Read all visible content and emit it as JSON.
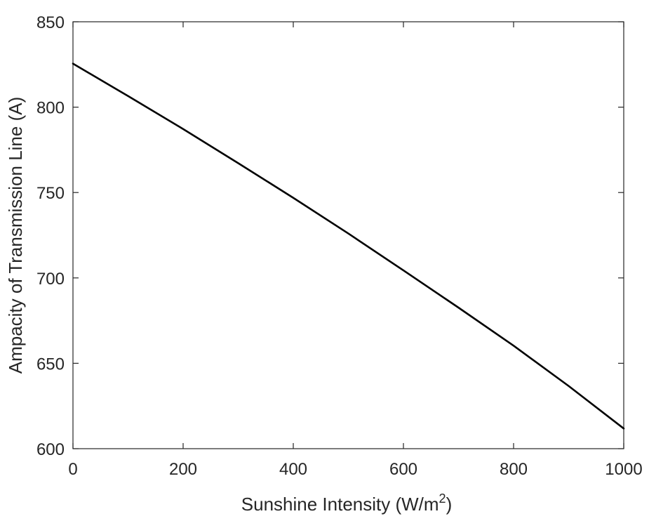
{
  "chart_data": {
    "type": "line",
    "title": "",
    "xlabel": "Sunshine Intensity (W/m",
    "xlabel_superscript": "2",
    "xlabel_suffix": ")",
    "ylabel": "Ampacity of Transmission Line (A)",
    "xlim": [
      0,
      1000
    ],
    "ylim": [
      600,
      850
    ],
    "xticks": [
      0,
      200,
      400,
      600,
      800,
      1000
    ],
    "yticks": [
      600,
      650,
      700,
      750,
      800,
      850
    ],
    "xtick_labels": [
      "0",
      "200",
      "400",
      "600",
      "800",
      "1000"
    ],
    "ytick_labels": [
      "600",
      "650",
      "700",
      "750",
      "800",
      "850"
    ],
    "grid": false,
    "series": [
      {
        "name": "Ampacity",
        "color": "#000000",
        "x": [
          0,
          100,
          200,
          300,
          400,
          500,
          600,
          700,
          800,
          900,
          1000
        ],
        "y": [
          825.5,
          806.5,
          787.2,
          767.2,
          746.9,
          726.0,
          704.4,
          682.6,
          660.3,
          636.7,
          611.8
        ]
      }
    ]
  },
  "colors": {
    "axis": "#262626",
    "line": "#000000",
    "background": "#ffffff"
  }
}
